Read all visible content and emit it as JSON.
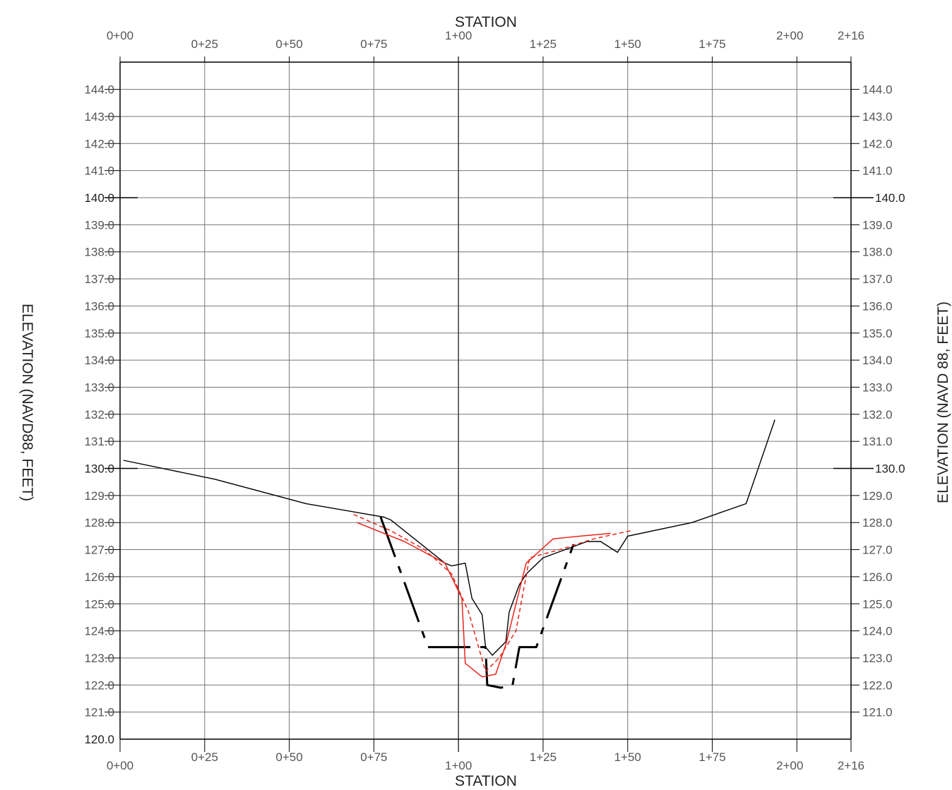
{
  "chart_data": {
    "type": "line",
    "title": "",
    "xlabel": "STATION",
    "ylabel_left": "ELEVATION (NAVD88, FEET)",
    "ylabel_right": "ELEVATION (NAVD 88, FEET)",
    "xlim": [
      0,
      216
    ],
    "ylim": [
      120,
      145
    ],
    "x_ticks": [
      {
        "value": 0,
        "label": "0+00"
      },
      {
        "value": 25,
        "label": "0+25"
      },
      {
        "value": 50,
        "label": "0+50"
      },
      {
        "value": 75,
        "label": "0+75"
      },
      {
        "value": 100,
        "label": "1+00"
      },
      {
        "value": 125,
        "label": "1+25"
      },
      {
        "value": 150,
        "label": "1+50"
      },
      {
        "value": 175,
        "label": "1+75"
      },
      {
        "value": 200,
        "label": "2+00"
      },
      {
        "value": 216,
        "label": "2+16"
      }
    ],
    "y_ticks_left": [
      "120.0",
      "121.0",
      "122.0",
      "123.0",
      "124.0",
      "125.0",
      "126.0",
      "127.0",
      "128.0",
      "129.0",
      "130.0",
      "131.0",
      "132.0",
      "133.0",
      "134.0",
      "135.0",
      "136.0",
      "137.0",
      "138.0",
      "139.0",
      "140.0",
      "141.0",
      "142.0",
      "143.0",
      "144.0"
    ],
    "y_ticks_right": [
      "121.0",
      "122.0",
      "123.0",
      "124.0",
      "125.0",
      "126.0",
      "127.0",
      "128.0",
      "129.0",
      "130.0",
      "131.0",
      "132.0",
      "133.0",
      "134.0",
      "135.0",
      "136.0",
      "137.0",
      "138.0",
      "139.0",
      "140.0",
      "141.0",
      "142.0",
      "143.0",
      "144.0"
    ],
    "grid": true,
    "colors": {
      "grid": "#777777",
      "axis": "#000000",
      "black": "#000000",
      "red": "#e8241a"
    },
    "series": [
      {
        "color": "#000000",
        "style": "solid",
        "width": 1.4,
        "x": [
          1,
          28,
          55,
          78,
          80,
          96,
          98,
          102,
          104,
          107,
          108,
          110,
          114,
          115,
          118,
          120,
          125,
          138,
          142,
          147,
          150,
          169,
          185,
          193.5
        ],
        "y": [
          130.3,
          129.6,
          128.7,
          128.2,
          128.1,
          126.5,
          126.4,
          126.5,
          125.2,
          124.6,
          123.4,
          123.1,
          123.6,
          124.7,
          125.7,
          126.1,
          126.7,
          127.3,
          127.3,
          126.9,
          127.5,
          128.0,
          128.7,
          131.8
        ]
      },
      {
        "color": "#000000",
        "style": "long-dash",
        "width": 3,
        "x": [
          77,
          91,
          108,
          108.5,
          112.5,
          116,
          118,
          123,
          134
        ],
        "y": [
          128.2,
          123.4,
          123.4,
          122.0,
          121.9,
          122.0,
          123.4,
          123.4,
          127.2
        ]
      },
      {
        "color": "#e8241a",
        "style": "solid",
        "width": 1.5,
        "x": [
          70,
          84,
          96,
          101,
          102,
          107,
          111,
          114,
          120,
          128,
          136,
          145
        ],
        "y": [
          128.0,
          127.3,
          126.5,
          125.2,
          122.8,
          122.3,
          122.4,
          123.5,
          126.5,
          127.4,
          127.5,
          127.6
        ]
      },
      {
        "color": "#e8241a",
        "style": "short-dash",
        "width": 1.5,
        "x": [
          69,
          80,
          90,
          98,
          103,
          108,
          112,
          117,
          121,
          130,
          140,
          151
        ],
        "y": [
          128.3,
          127.7,
          127.0,
          126.1,
          124.7,
          122.5,
          123.0,
          124.0,
          126.7,
          127.0,
          127.4,
          127.7
        ]
      }
    ]
  }
}
